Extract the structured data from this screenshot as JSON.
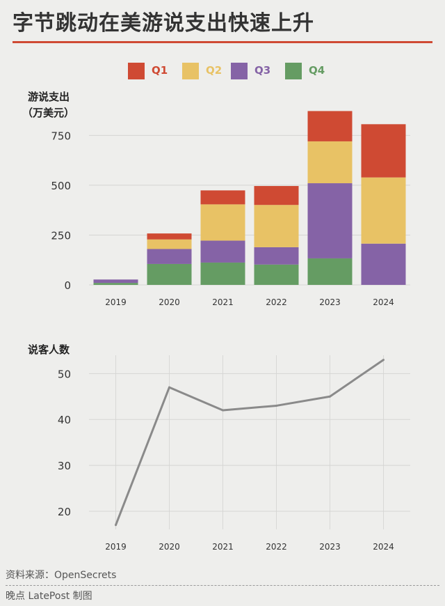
{
  "title": "字节跳动在美游说支出快速上升",
  "colors": {
    "Q1": "#cf4a33",
    "Q2": "#e8c265",
    "Q3": "#8563a6",
    "Q4": "#659c63",
    "line": "#8a8a8a",
    "accent": "#cf4a33"
  },
  "legend": [
    {
      "label": "Q1",
      "color": "#cf4a33"
    },
    {
      "label": "Q2",
      "color": "#e8c265"
    },
    {
      "label": "Q3",
      "color": "#8563a6"
    },
    {
      "label": "Q4",
      "color": "#659c63"
    }
  ],
  "chart_data": [
    {
      "type": "bar",
      "stacked": true,
      "ylabel_line1": "游说支出",
      "ylabel_line2": "（万美元）",
      "categories": [
        "2019",
        "2020",
        "2021",
        "2022",
        "2023",
        "2024"
      ],
      "series": [
        {
          "name": "Q4",
          "values": [
            10,
            105,
            112,
            102,
            133,
            0
          ]
        },
        {
          "name": "Q3",
          "values": [
            17,
            75,
            110,
            87,
            377,
            207
          ]
        },
        {
          "name": "Q2",
          "values": [
            0,
            48,
            182,
            212,
            210,
            332
          ]
        },
        {
          "name": "Q1",
          "values": [
            0,
            30,
            70,
            95,
            152,
            267
          ]
        }
      ],
      "yticks": [
        0,
        250,
        500,
        750
      ],
      "ylim": [
        0,
        870
      ],
      "grid": true
    },
    {
      "type": "line",
      "ylabel": "说客人数",
      "x": [
        "2019",
        "2020",
        "2021",
        "2022",
        "2023",
        "2024"
      ],
      "y": [
        17,
        47,
        42,
        43,
        45,
        53
      ],
      "yticks": [
        20,
        30,
        40,
        50
      ],
      "ylim": [
        16.5,
        54
      ],
      "grid": true
    }
  ],
  "footer": {
    "source": "资料来源：OpenSecrets",
    "credit": "晚点 LatePost 制图"
  }
}
